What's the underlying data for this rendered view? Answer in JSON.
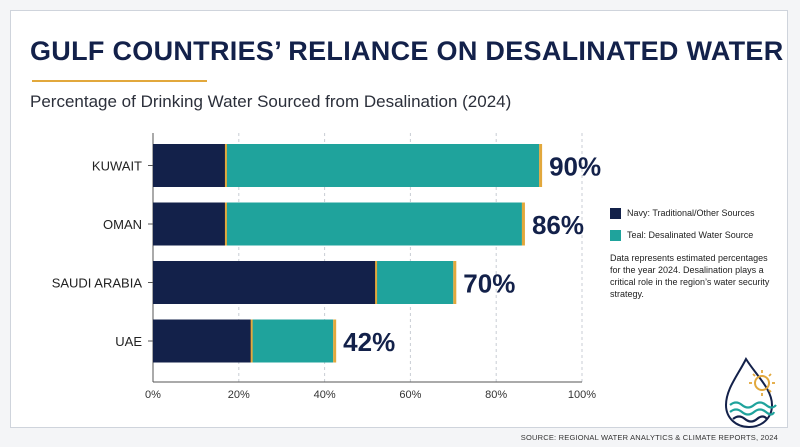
{
  "title": "GULF COUNTRIES’ RELIANCE ON DESALINATED WATER",
  "subtitle": "Percentage of Drinking Water Sourced from Desalination (2024)",
  "legend": {
    "navy_label": "Navy: Traditional/Other Sources",
    "teal_label": "Teal: Desalinated Water Source",
    "note": "Data represents estimated percentages for the year 2024. Desalination plays a critical role in the region’s water security strategy."
  },
  "source": "SOURCE: REGIONAL WATER ANALYTICS & CLIMATE REPORTS, 2024",
  "colors": {
    "navy": "#13214a",
    "teal": "#1fa39c",
    "accent": "#e2a83c",
    "grid": "#c9cdd4"
  },
  "chart_data": {
    "type": "bar",
    "orientation": "horizontal",
    "stacked": true,
    "title": "GULF COUNTRIES’ RELIANCE ON DESALINATED WATER",
    "subtitle": "Percentage of Drinking Water Sourced from Desalination (2024)",
    "categories": [
      "KUWAIT",
      "OMAN",
      "SAUDI ARABIA",
      "UAE"
    ],
    "series": [
      {
        "name": "Navy: Traditional/Other Sources",
        "color": "#13214a",
        "values": [
          17,
          17,
          52,
          23
        ]
      },
      {
        "name": "Teal: Desalinated Water Source",
        "color": "#1fa39c",
        "values": [
          73,
          69,
          18,
          19
        ]
      }
    ],
    "totals": [
      90,
      86,
      70,
      42
    ],
    "data_labels": [
      "90%",
      "86%",
      "70%",
      "42%"
    ],
    "xlim": [
      0,
      100
    ],
    "xticks": [
      "0%",
      "20%",
      "40%",
      "60%",
      "80%",
      "100%"
    ],
    "xtick_values": [
      0,
      20,
      40,
      60,
      80,
      100
    ],
    "grid": "vertical dashed",
    "legend_position": "right"
  }
}
